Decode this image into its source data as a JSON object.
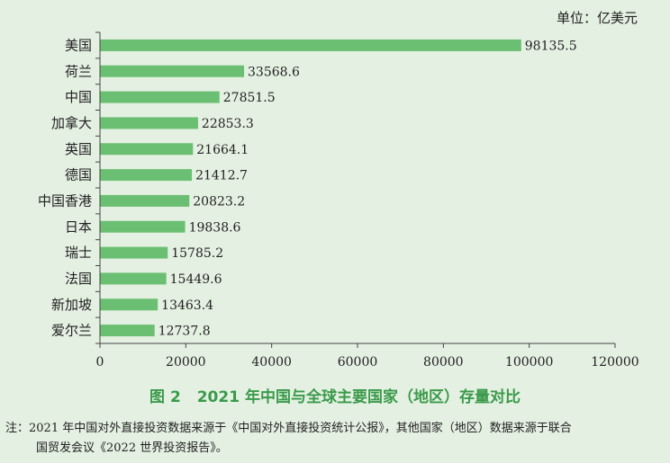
{
  "chart_data": {
    "type": "bar",
    "orientation": "horizontal",
    "unit": "单位：亿美元",
    "categories": [
      "美国",
      "荷兰",
      "中国",
      "加拿大",
      "英国",
      "德国",
      "中国香港",
      "日本",
      "瑞士",
      "法国",
      "新加坡",
      "爱尔兰"
    ],
    "values": [
      98135.5,
      33568.6,
      27851.5,
      22853.3,
      21664.1,
      21412.7,
      20823.2,
      19838.6,
      15785.2,
      15449.6,
      13463.4,
      12737.8
    ],
    "value_labels": [
      "98135.5",
      "33568.6",
      "27851.5",
      "22853.3",
      "21664.1",
      "21412.7",
      "20823.2",
      "19838.6",
      "15785.2",
      "15449.6",
      "13463.4",
      "12737.8"
    ],
    "xlim": [
      0,
      120000
    ],
    "xticks": [
      0,
      20000,
      40000,
      60000,
      80000,
      100000,
      120000
    ],
    "xtick_labels": [
      "0",
      "20000",
      "40000",
      "60000",
      "80000",
      "100000",
      "120000"
    ],
    "grid": false,
    "bar_color": "#6bbf72"
  },
  "figure": {
    "number": "图 2",
    "title": "2021 年中国与全球主要国家（地区）存量对比"
  },
  "note": {
    "line1": "注：2021 年中国对外直接投资数据来源于《中国对外直接投资统计公报》，其他国家（地区）数据来源于联合",
    "line2": "国贸发会议《2022 世界投资报告》。"
  }
}
